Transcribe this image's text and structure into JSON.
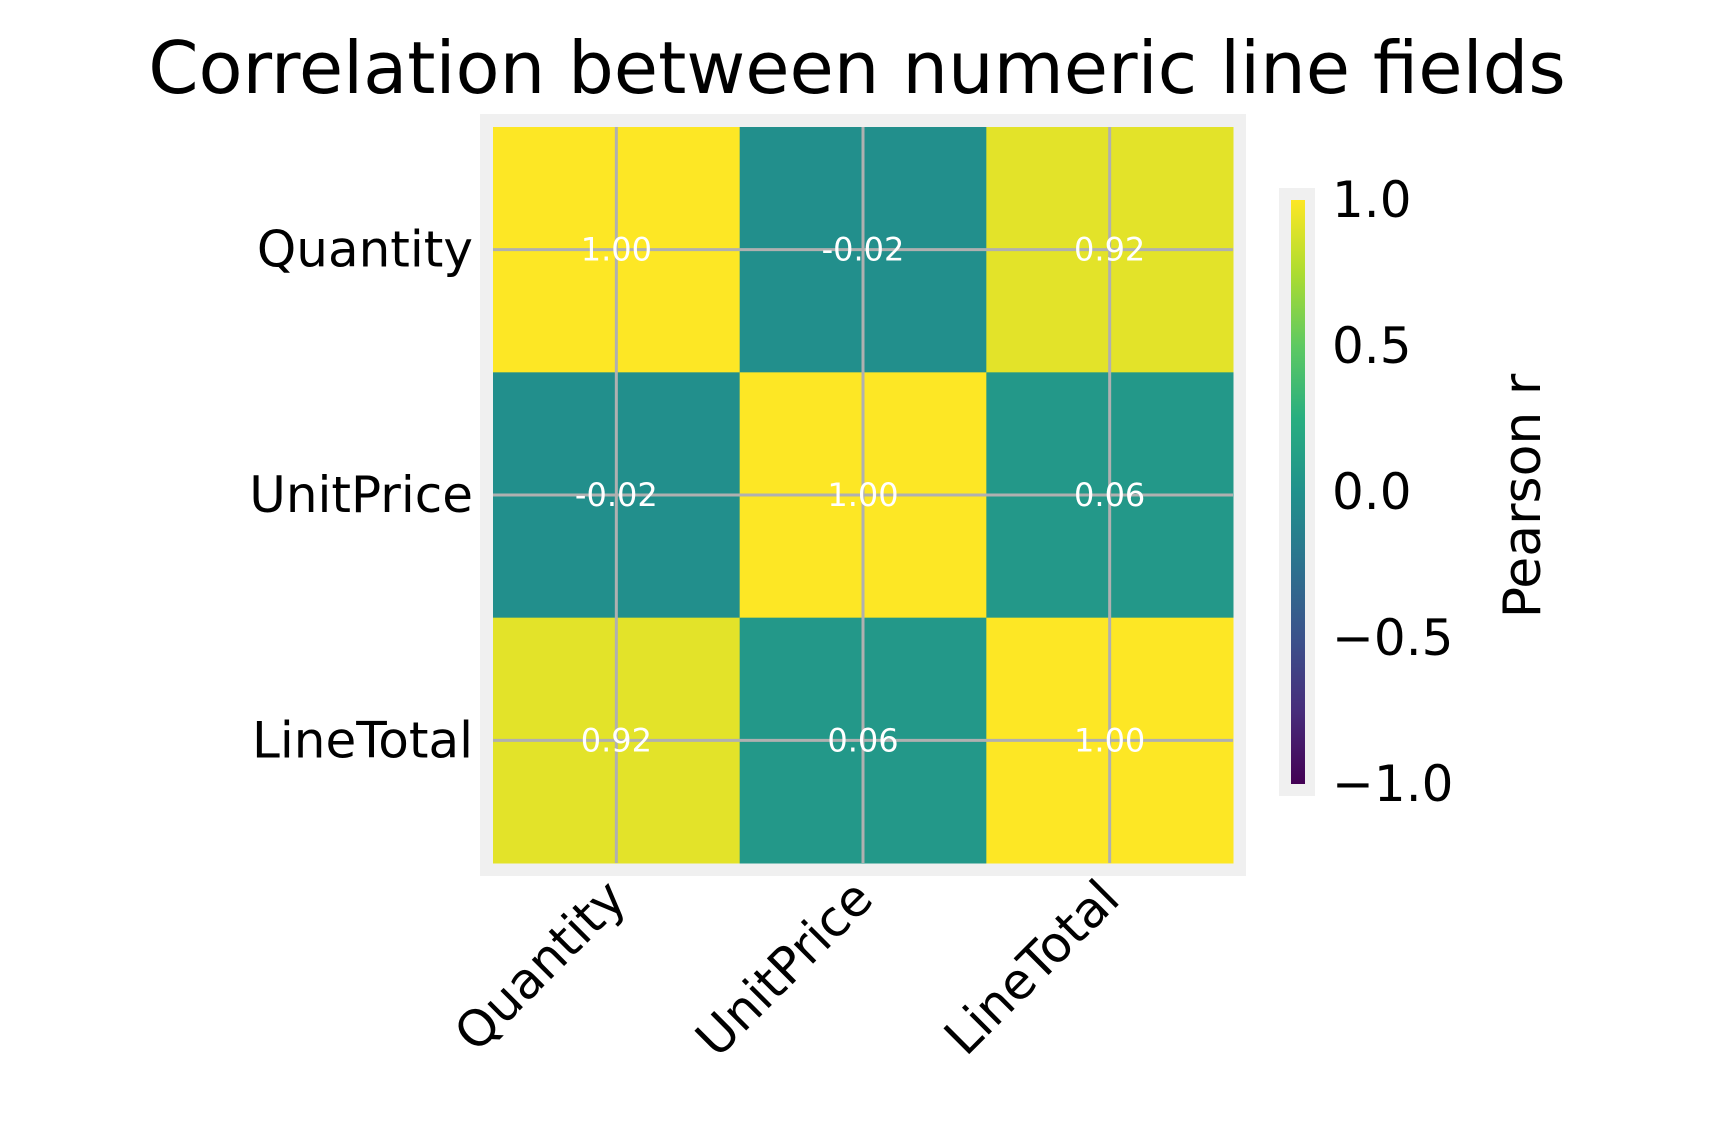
{
  "chart_data": {
    "type": "heatmap",
    "title": "Correlation between numeric line fields",
    "x_categories": [
      "Quantity",
      "UnitPrice",
      "LineTotal"
    ],
    "y_categories": [
      "Quantity",
      "UnitPrice",
      "LineTotal"
    ],
    "values": [
      [
        1.0,
        -0.02,
        0.92
      ],
      [
        -0.02,
        1.0,
        0.06
      ],
      [
        0.92,
        0.06,
        1.0
      ]
    ],
    "cell_labels": [
      [
        "1.00",
        "-0.02",
        "0.92"
      ],
      [
        "-0.02",
        "1.00",
        "0.06"
      ],
      [
        "0.92",
        "0.06",
        "1.00"
      ]
    ],
    "colormap": "viridis",
    "vmin": -1.0,
    "vmax": 1.0,
    "colorbar": {
      "label": "Pearson r",
      "ticks": [
        1.0,
        0.5,
        0.0,
        -0.5,
        -1.0
      ],
      "tick_labels": [
        "1.0",
        "0.5",
        "0.0",
        "−0.5",
        "−1.0"
      ]
    },
    "grid": true
  }
}
